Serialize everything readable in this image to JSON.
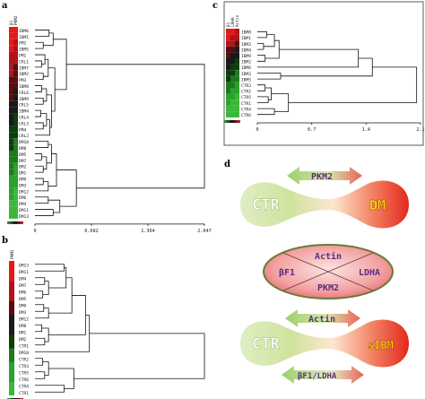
{
  "panels": {
    "a": {
      "letter": "a",
      "column_labels": [
        "β1",
        "PKM2"
      ],
      "rows": [
        "IBM6",
        "IBM1",
        "PM2",
        "IBM5",
        "PM1",
        "CRL1",
        "IBM7",
        "IBM2",
        "PM3",
        "IBM8",
        "CRL6",
        "IBM9",
        "CRL5",
        "IBM4",
        "CRL4",
        "CRL3",
        "PM4",
        "CRL2",
        "DM10",
        "DM8",
        "DM5",
        "DM7",
        "DM2",
        "DM1",
        "DM9",
        "DM3",
        "DM12",
        "DM6",
        "DM4",
        "DM11",
        "DM13"
      ],
      "axis_ticks": [
        "0",
        "0.682",
        "1.364",
        "2.047"
      ],
      "axis_max": 2.047
    },
    "b": {
      "letter": "b",
      "column_labels": [
        "PKM2"
      ],
      "rows": [
        "DM13",
        "DM11",
        "DM4",
        "DM7",
        "DM6",
        "DM5",
        "DM9",
        "DM3",
        "DM12",
        "DM8",
        "DM1",
        "DM2",
        "CTR1",
        "DM10",
        "CTR2",
        "CTR3",
        "CTR5",
        "CTR6",
        "CTR4",
        "CTR1"
      ],
      "axis_ticks": [
        "0",
        "0.581",
        "1.163",
        "1.744"
      ],
      "axis_max": 1.744
    },
    "c": {
      "letter": "c",
      "column_labels": [
        "β1",
        "LDHA",
        "Actin"
      ],
      "rows": [
        "IBM8",
        "IBM1",
        "IBM3",
        "IBM4",
        "IBM9",
        "IBM2",
        "IBM6",
        "IBM3",
        "IBM5",
        "CTR3",
        "CTR2",
        "CTR5",
        "CTR1",
        "CTR4",
        "CTR6"
      ],
      "axis_ticks": [
        "0",
        "0.7",
        "1.4",
        "2.1"
      ],
      "axis_max": 2.1
    },
    "d": {
      "letter": "d",
      "top": {
        "left": "CTR",
        "right": "DM",
        "arrow": "PKM2"
      },
      "ellipse": {
        "top": "Actin",
        "left": "βF1",
        "right": "LDHA",
        "bottom": "PKM2"
      },
      "bottom": {
        "left": "CTR",
        "right": "sIBM",
        "arrow_up": "Actin",
        "arrow_down": "βF1/LDHA"
      }
    }
  },
  "colors": {
    "heat_red": "#e31a1c",
    "heat_dark": "#1a1a1a",
    "heat_green": "#2ca02c",
    "green_bulb": "#b9d98a",
    "red_bulb": "#e8413a",
    "ellipse_fill": "#f2a6a6",
    "arrow_green": "#9ccf6a",
    "arrow_red": "#e8615a",
    "label_yellow": "#ffe600",
    "label_purple": "#5a2d82"
  }
}
